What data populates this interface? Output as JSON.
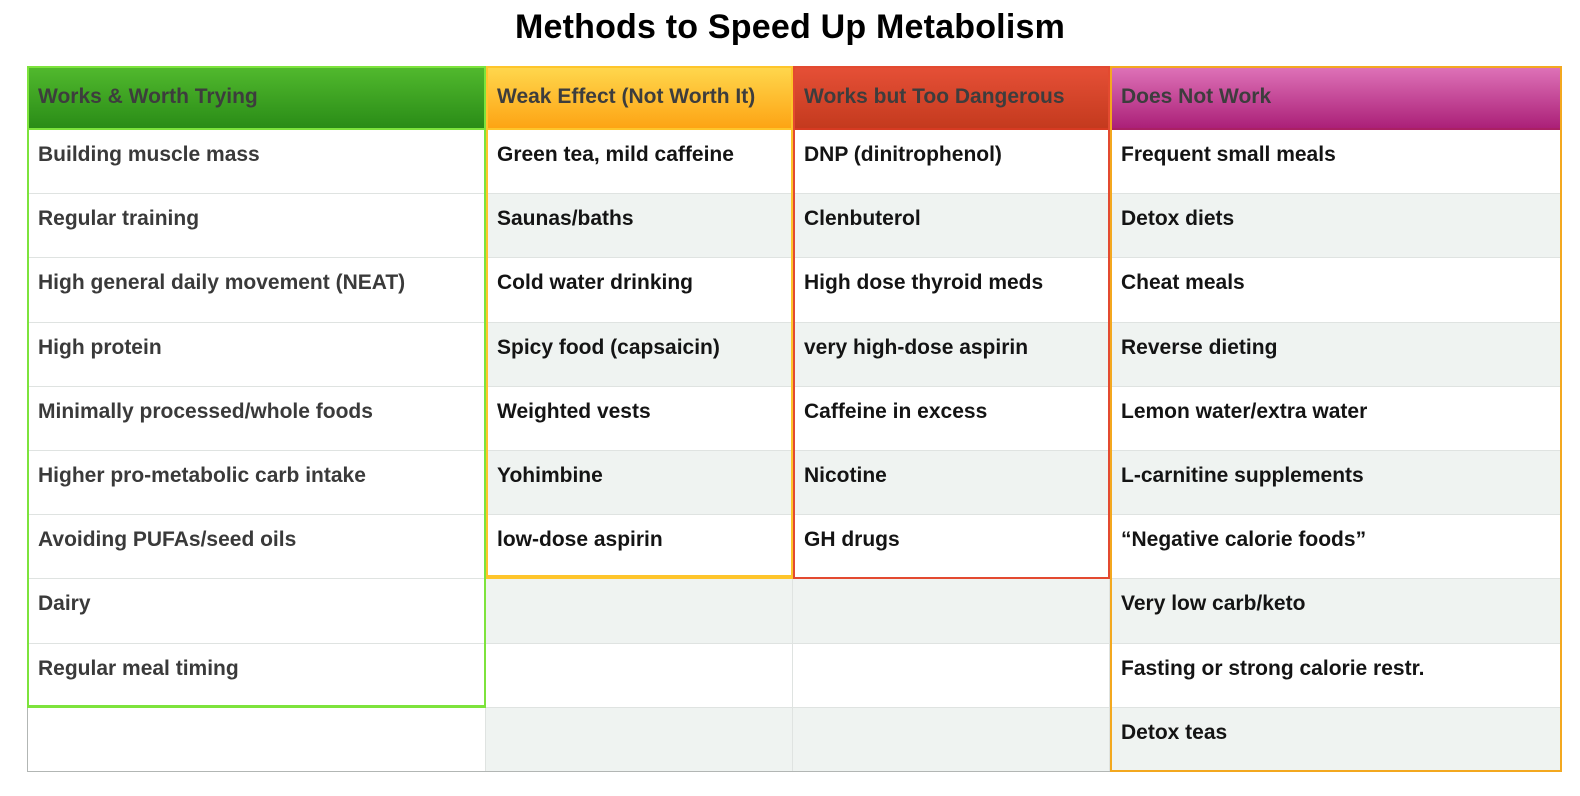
{
  "title": "Methods to Speed Up Metabolism",
  "columns": [
    {
      "key": "works-worth-trying",
      "header": "Works & Worth Trying",
      "items": [
        "Building muscle mass",
        "Regular training",
        "High general daily movement (NEAT)",
        "High protein",
        "Minimally processed/whole foods",
        "Higher pro-metabolic carb intake",
        "Avoiding PUFAs/seed oils",
        "Dairy",
        "Regular meal timing",
        ""
      ]
    },
    {
      "key": "weak-effect",
      "header": "Weak Effect (Not Worth It)",
      "items": [
        "Green tea, mild caffeine",
        "Saunas/baths",
        "Cold water drinking",
        "Spicy food (capsaicin)",
        "Weighted vests",
        "Yohimbine",
        " low-dose aspirin",
        "",
        "",
        ""
      ]
    },
    {
      "key": "too-dangerous",
      "header": "Works but Too Dangerous",
      "items": [
        "DNP (dinitrophenol)",
        "Clenbuterol",
        "High dose thyroid meds",
        "very high-dose aspirin",
        "Caffeine in excess",
        "Nicotine",
        "GH drugs",
        "",
        "",
        ""
      ]
    },
    {
      "key": "does-not-work",
      "header": "Does Not Work",
      "items": [
        "Frequent small meals",
        "Detox diets",
        "Cheat meals",
        "Reverse dieting",
        "Lemon water/extra water",
        "L-carnitine supplements",
        "“Negative calorie foods”",
        "Very low carb/keto",
        "Fasting or strong calorie restr.",
        "Detox teas"
      ]
    }
  ],
  "colors": {
    "green_border": "#7de33c",
    "green_top": "#52ba2e",
    "green_bot": "#2a8c17",
    "gold_border": "#fec52b",
    "gold_top": "#ffd84e",
    "gold_bot": "#fda414",
    "red_border": "#e34a30",
    "red_hdline": "#d63b22",
    "red_top": "#e65037",
    "red_bot": "#c43a1e",
    "orange_border": "#f3a81f",
    "pink_hdline": "#aa2064",
    "pink_top": "#df74b9",
    "pink_bot": "#ab2078",
    "stripe": "#eff3f1",
    "divider": "#dfe3e1",
    "plain_border": "#b2b6b4"
  }
}
